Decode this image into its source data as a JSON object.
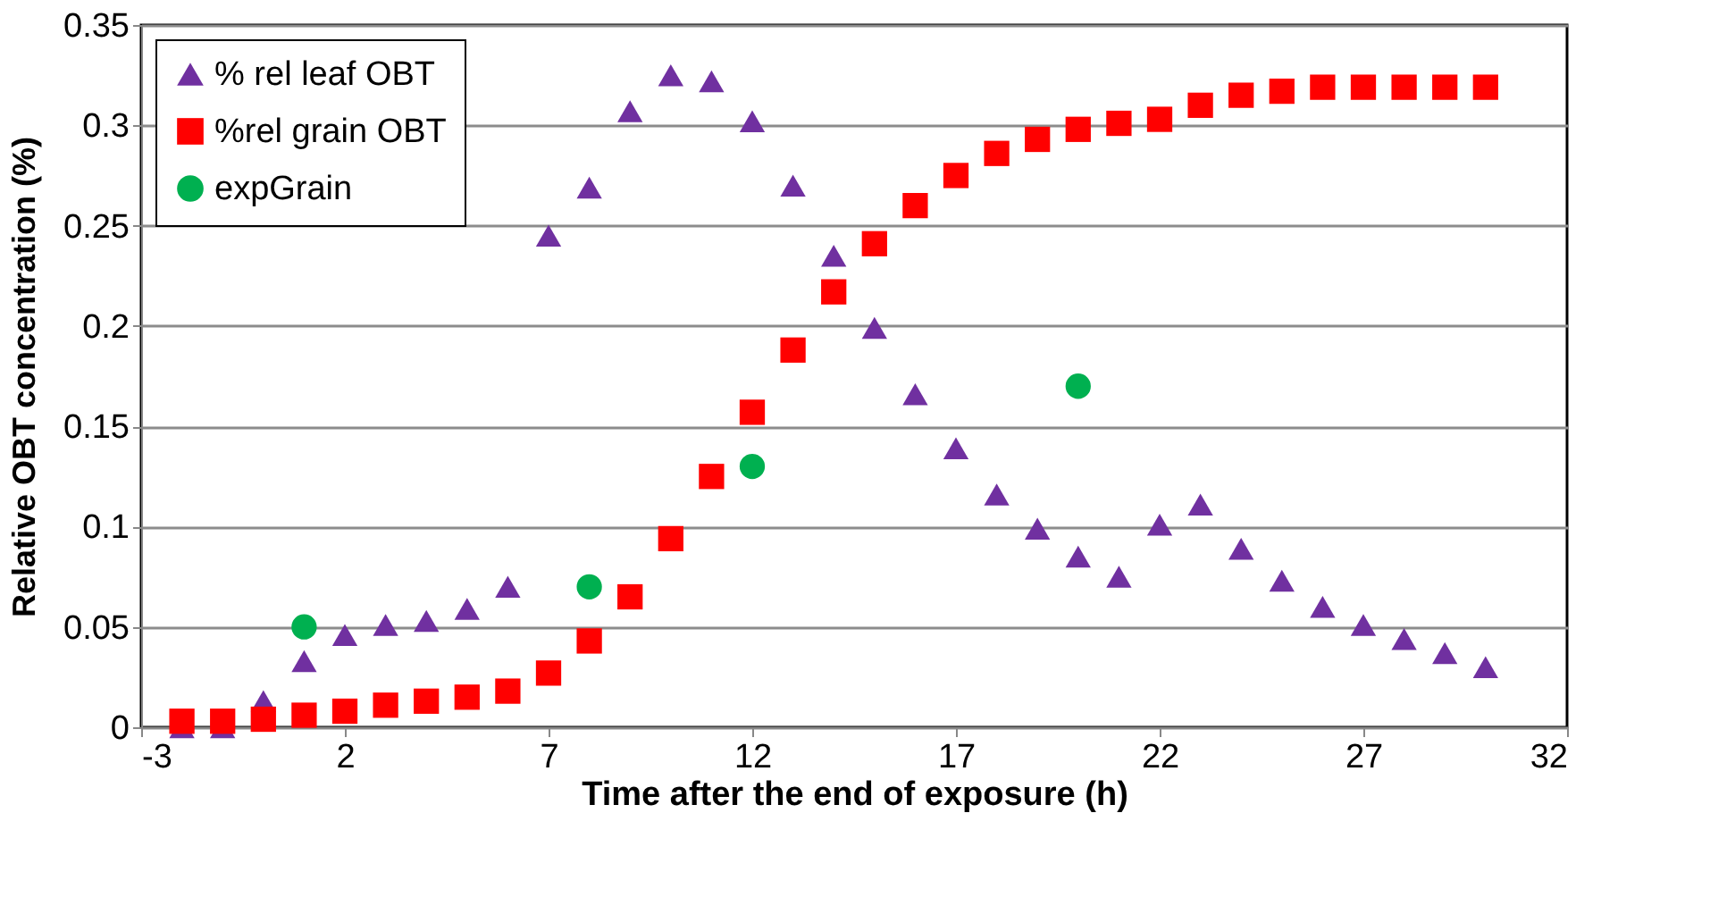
{
  "chart_data": {
    "type": "scatter",
    "xlabel": "Time after the end of exposure (h)",
    "ylabel": "Relative OBT concentration (%)",
    "xlim": [
      -3,
      32
    ],
    "xticks": [
      -3,
      2,
      7,
      12,
      17,
      22,
      27,
      32
    ],
    "ylim": [
      0,
      0.35
    ],
    "yticks": [
      0,
      0.05,
      0.1,
      0.15,
      0.2,
      0.25,
      0.3,
      0.35
    ],
    "grid": "y",
    "legend": "top left",
    "series": [
      {
        "name": "% rel leaf OBT",
        "color": "#7030a0",
        "marker": "triangle",
        "x": [
          -2,
          -1,
          0,
          1,
          2,
          3,
          4,
          5,
          6,
          7,
          8,
          9,
          10,
          11,
          12,
          13,
          14,
          15,
          16,
          17,
          18,
          19,
          20,
          21,
          22,
          23,
          24,
          25,
          26,
          27,
          28,
          29,
          30
        ],
        "values": [
          0.0,
          0.0,
          0.013,
          0.033,
          0.046,
          0.051,
          0.053,
          0.059,
          0.07,
          0.245,
          0.269,
          0.307,
          0.325,
          0.322,
          0.302,
          0.27,
          0.235,
          0.199,
          0.166,
          0.139,
          0.116,
          0.099,
          0.085,
          0.075,
          0.101,
          0.111,
          0.089,
          0.073,
          0.06,
          0.051,
          0.044,
          0.037,
          0.03
        ]
      },
      {
        "name": "%rel grain OBT",
        "color": "#ff0000",
        "marker": "square",
        "x": [
          -2,
          -1,
          0,
          1,
          2,
          3,
          4,
          5,
          6,
          7,
          8,
          9,
          10,
          11,
          12,
          13,
          14,
          15,
          16,
          17,
          18,
          19,
          20,
          21,
          22,
          23,
          24,
          25,
          26,
          27,
          28,
          29,
          30
        ],
        "values": [
          0.003,
          0.003,
          0.004,
          0.006,
          0.008,
          0.011,
          0.013,
          0.015,
          0.018,
          0.027,
          0.043,
          0.065,
          0.094,
          0.125,
          0.157,
          0.188,
          0.217,
          0.241,
          0.26,
          0.275,
          0.286,
          0.293,
          0.298,
          0.301,
          0.303,
          0.31,
          0.315,
          0.317,
          0.319,
          0.319,
          0.319,
          0.319,
          0.319
        ]
      },
      {
        "name": "expGrain",
        "color": "#00b050",
        "marker": "circle",
        "x": [
          1,
          8,
          12,
          20
        ],
        "values": [
          0.05,
          0.07,
          0.13,
          0.17
        ]
      }
    ]
  }
}
